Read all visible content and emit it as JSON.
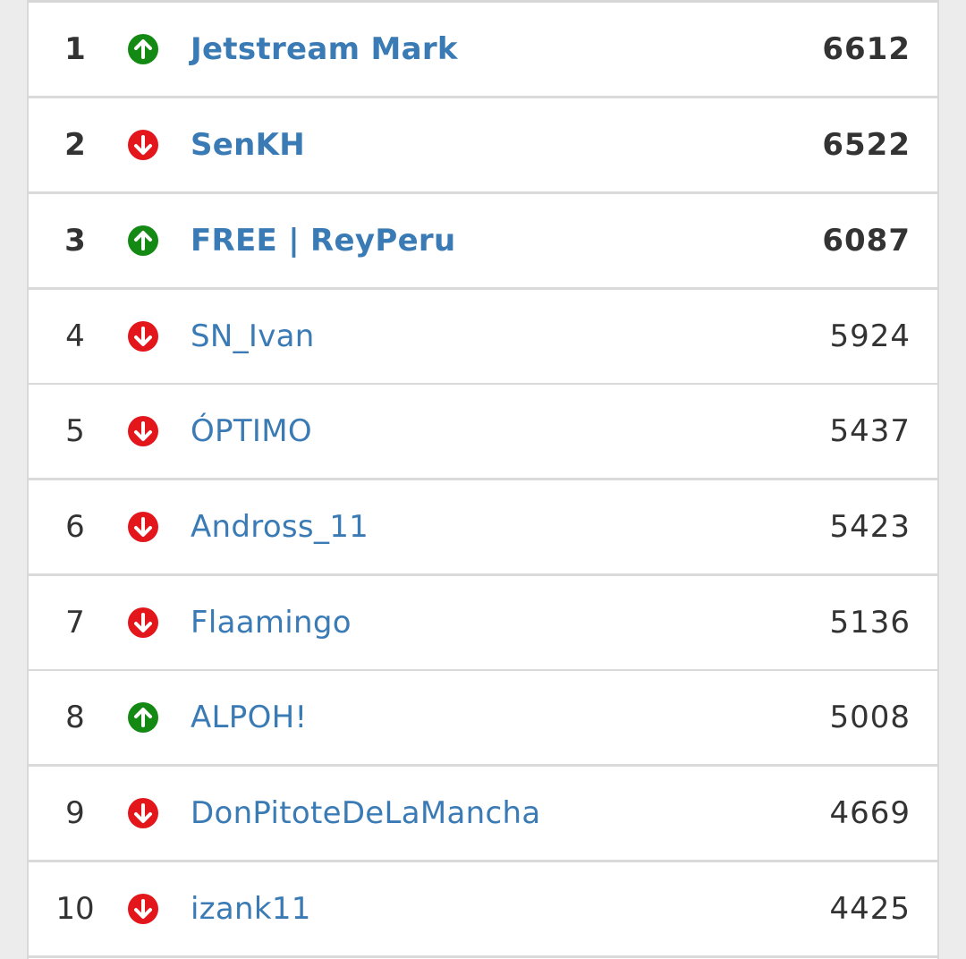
{
  "colors": {
    "up": "#148a14",
    "down": "#e3161c",
    "name": "#3a7bb5",
    "text": "#333333"
  },
  "leaderboard": {
    "rows": [
      {
        "rank": "1",
        "trend": "up",
        "trend_icon": "arrow-up-circle-icon",
        "name": "Jetstream Mark",
        "points": "6612",
        "highlight": true
      },
      {
        "rank": "2",
        "trend": "down",
        "trend_icon": "arrow-down-circle-icon",
        "name": "SenKH",
        "points": "6522",
        "highlight": true
      },
      {
        "rank": "3",
        "trend": "up",
        "trend_icon": "arrow-up-circle-icon",
        "name": "FREE | ReyPeru",
        "points": "6087",
        "highlight": true
      },
      {
        "rank": "4",
        "trend": "down",
        "trend_icon": "arrow-down-circle-icon",
        "name": "SN_Ivan",
        "points": "5924",
        "highlight": false
      },
      {
        "rank": "5",
        "trend": "down",
        "trend_icon": "arrow-down-circle-icon",
        "name": "ÓPTIMO",
        "points": "5437",
        "highlight": false
      },
      {
        "rank": "6",
        "trend": "down",
        "trend_icon": "arrow-down-circle-icon",
        "name": "Andross_11",
        "points": "5423",
        "highlight": false
      },
      {
        "rank": "7",
        "trend": "down",
        "trend_icon": "arrow-down-circle-icon",
        "name": "Flaamingo",
        "points": "5136",
        "highlight": false
      },
      {
        "rank": "8",
        "trend": "up",
        "trend_icon": "arrow-up-circle-icon",
        "name": "ALPOH!",
        "points": "5008",
        "highlight": false
      },
      {
        "rank": "9",
        "trend": "down",
        "trend_icon": "arrow-down-circle-icon",
        "name": "DonPitoteDeLaMancha",
        "points": "4669",
        "highlight": false
      },
      {
        "rank": "10",
        "trend": "down",
        "trend_icon": "arrow-down-circle-icon",
        "name": "izank11",
        "points": "4425",
        "highlight": false
      }
    ]
  }
}
